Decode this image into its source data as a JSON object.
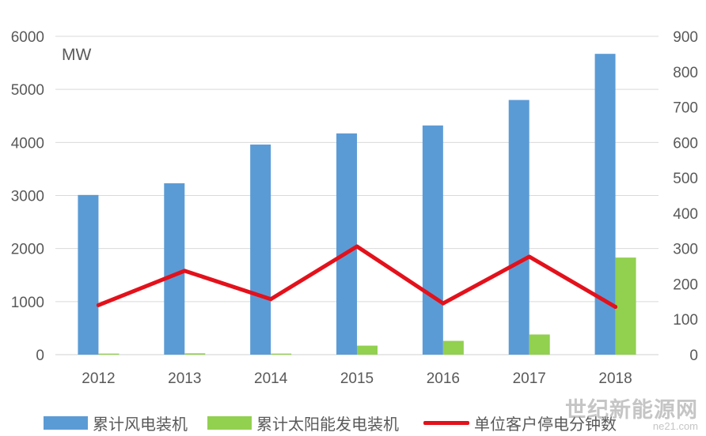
{
  "chart_data": {
    "type": "bar",
    "unit_label": "MW",
    "categories": [
      "2012",
      "2013",
      "2014",
      "2015",
      "2016",
      "2017",
      "2018"
    ],
    "series": [
      {
        "name": "累计风电装机",
        "type": "bar",
        "axis": "left",
        "color": "#5b9bd5",
        "values": [
          3010,
          3230,
          3960,
          4170,
          4320,
          4800,
          5670
        ]
      },
      {
        "name": "累计太阳能发电装机",
        "type": "bar",
        "axis": "left",
        "color": "#92d050",
        "values": [
          20,
          25,
          20,
          170,
          260,
          380,
          1830
        ]
      },
      {
        "name": "单位客户停电分钟数",
        "type": "line",
        "axis": "right",
        "color": "#e3111b",
        "values": [
          140,
          237,
          157,
          306,
          145,
          277,
          135
        ]
      }
    ],
    "y_left": {
      "min": 0,
      "max": 6000,
      "ticks": [
        "0",
        "1000",
        "2000",
        "3000",
        "4000",
        "5000",
        "6000"
      ]
    },
    "y_right": {
      "min": 0,
      "max": 900,
      "ticks": [
        "0",
        "100",
        "200",
        "300",
        "400",
        "500",
        "600",
        "700",
        "800",
        "900"
      ]
    },
    "grid": true,
    "legend_position": "bottom"
  },
  "watermark": {
    "text": "世纪新能源网",
    "sub": "ne21.com"
  }
}
